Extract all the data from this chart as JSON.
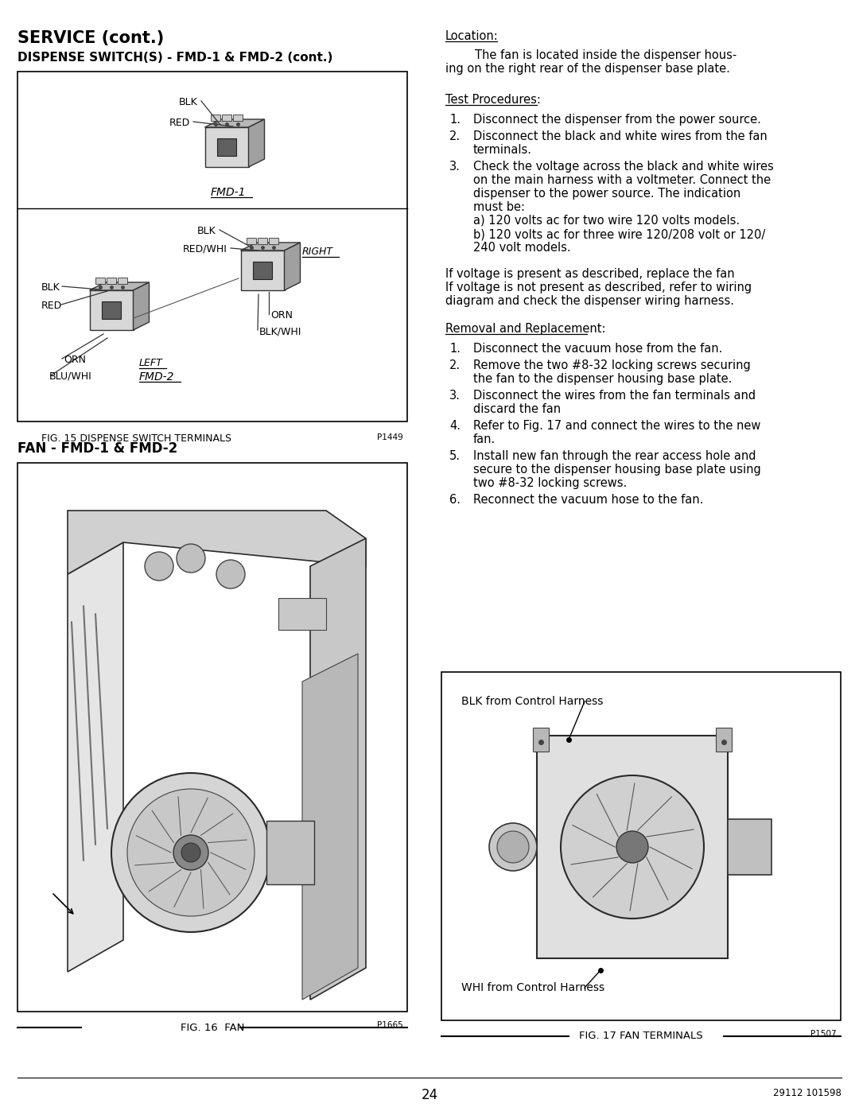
{
  "page_bg": "#ffffff",
  "page_num": "24",
  "doc_num": "29112 101598",
  "title_service": "SERVICE (cont.)",
  "title_dispense": "DISPENSE SWITCH(S) - FMD-1 & FMD-2 (cont.)",
  "title_fan": "FAN - FMD-1 & FMD-2",
  "fig15_label": "FIG. 15 DISPENSE SWITCH TERMINALS",
  "fig15_code": "P1449",
  "fig16_label": "FIG. 16  FAN",
  "fig16_code": "P1665",
  "fig17_label": "FIG. 17 FAN TERMINALS",
  "fig17_code": "P1507",
  "location_header": "Location:",
  "location_line1": "        The fan is located inside the dispenser hous-",
  "location_line2": "ing on the right rear of the dispenser base plate.",
  "test_header": "Test Procedures:",
  "test_items": [
    "Disconnect the dispenser from the power source.",
    "Disconnect the black and white wires from the fan\nterminals.",
    "Check the voltage across the black and white wires\non the main harness with a voltmeter. Connect the\ndispenser to the power source. The indication\nmust be:\na) 120 volts ac for two wire 120 volts models.\nb) 120 volts ac for three wire 120/208 volt or 120/\n240 volt models."
  ],
  "mid_text1": "If voltage is present as described, replace the fan",
  "mid_text2": "If voltage is not present as described, refer to wiring",
  "mid_text3": "diagram and check the dispenser wiring harness.",
  "removal_header": "Removal and Replacement:",
  "removal_items": [
    "Disconnect the vacuum hose from the fan.",
    "Remove the two #8-32 locking screws securing\nthe fan to the dispenser housing base plate.",
    "Disconnect the wires from the fan terminals and\ndiscard the fan",
    "Refer to Fig. 17 and connect the wires to the new\nfan.",
    "Install new fan through the rear access hole and\nsecure to the dispenser housing base plate using\ntwo #8-32 locking screws.",
    "Reconnect the vacuum hose to the fan."
  ],
  "fig17_blk_label": "BLK from Control Harness",
  "fig17_whi_label": "WHI from Control Harness"
}
